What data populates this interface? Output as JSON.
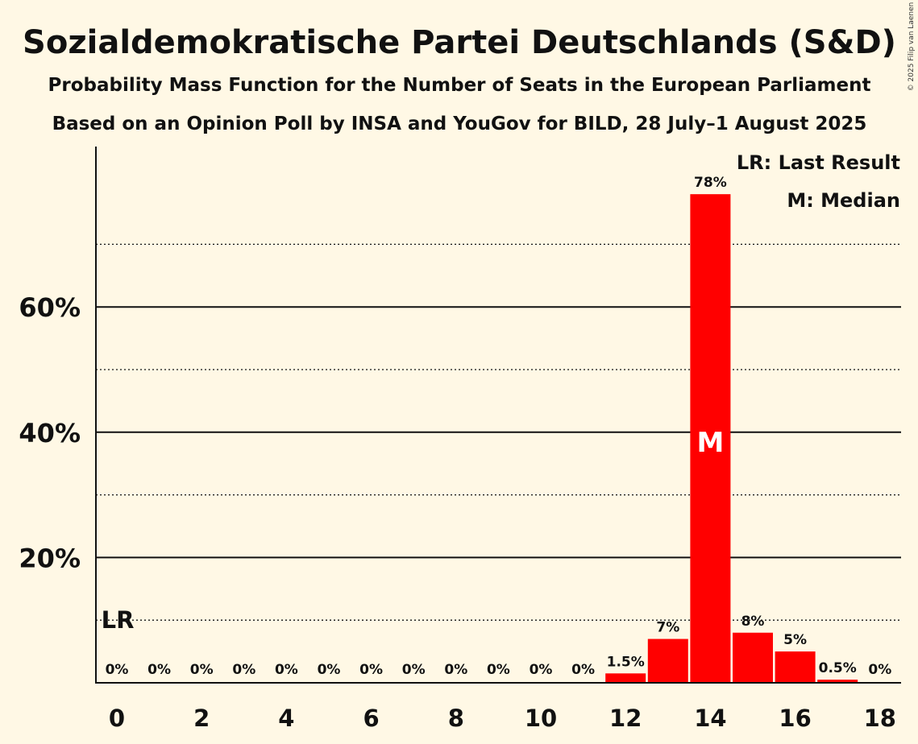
{
  "chart_data": {
    "type": "bar",
    "title": "Sozialdemokratische Partei Deutschlands (S&D)",
    "subtitle": "Probability Mass Function for the Number of Seats in the European Parliament",
    "subtitle2": "Based on an Opinion Poll by INSA and YouGov for BILD, 28 July–1 August 2025",
    "copyright": "© 2025 Filip van Laenen",
    "x": [
      0,
      1,
      2,
      3,
      4,
      5,
      6,
      7,
      8,
      9,
      10,
      11,
      12,
      13,
      14,
      15,
      16,
      17,
      18
    ],
    "values": [
      0,
      0,
      0,
      0,
      0,
      0,
      0,
      0,
      0,
      0,
      0,
      0,
      1.5,
      7,
      78,
      8,
      5,
      0.5,
      0
    ],
    "labels": [
      "0%",
      "0%",
      "0%",
      "0%",
      "0%",
      "0%",
      "0%",
      "0%",
      "0%",
      "0%",
      "0%",
      "0%",
      "1.5%",
      "7%",
      "78%",
      "8%",
      "5%",
      "0.5%",
      "0%"
    ],
    "x_ticks": [
      0,
      2,
      4,
      6,
      8,
      10,
      12,
      14,
      16,
      18
    ],
    "y_ticks": [
      {
        "value": 20,
        "label": "20%"
      },
      {
        "value": 40,
        "label": "40%"
      },
      {
        "value": 60,
        "label": "60%"
      }
    ],
    "y_minor_gridlines": [
      10,
      30,
      50,
      70
    ],
    "ylim": [
      0,
      85
    ],
    "bar_color": "#ff0000",
    "last_result_seat": 0,
    "last_result_marker": "LR",
    "median_seat": 14,
    "median_marker": "M",
    "legend": {
      "position": "top-right",
      "items": [
        "LR: Last Result",
        "M: Median"
      ]
    }
  }
}
